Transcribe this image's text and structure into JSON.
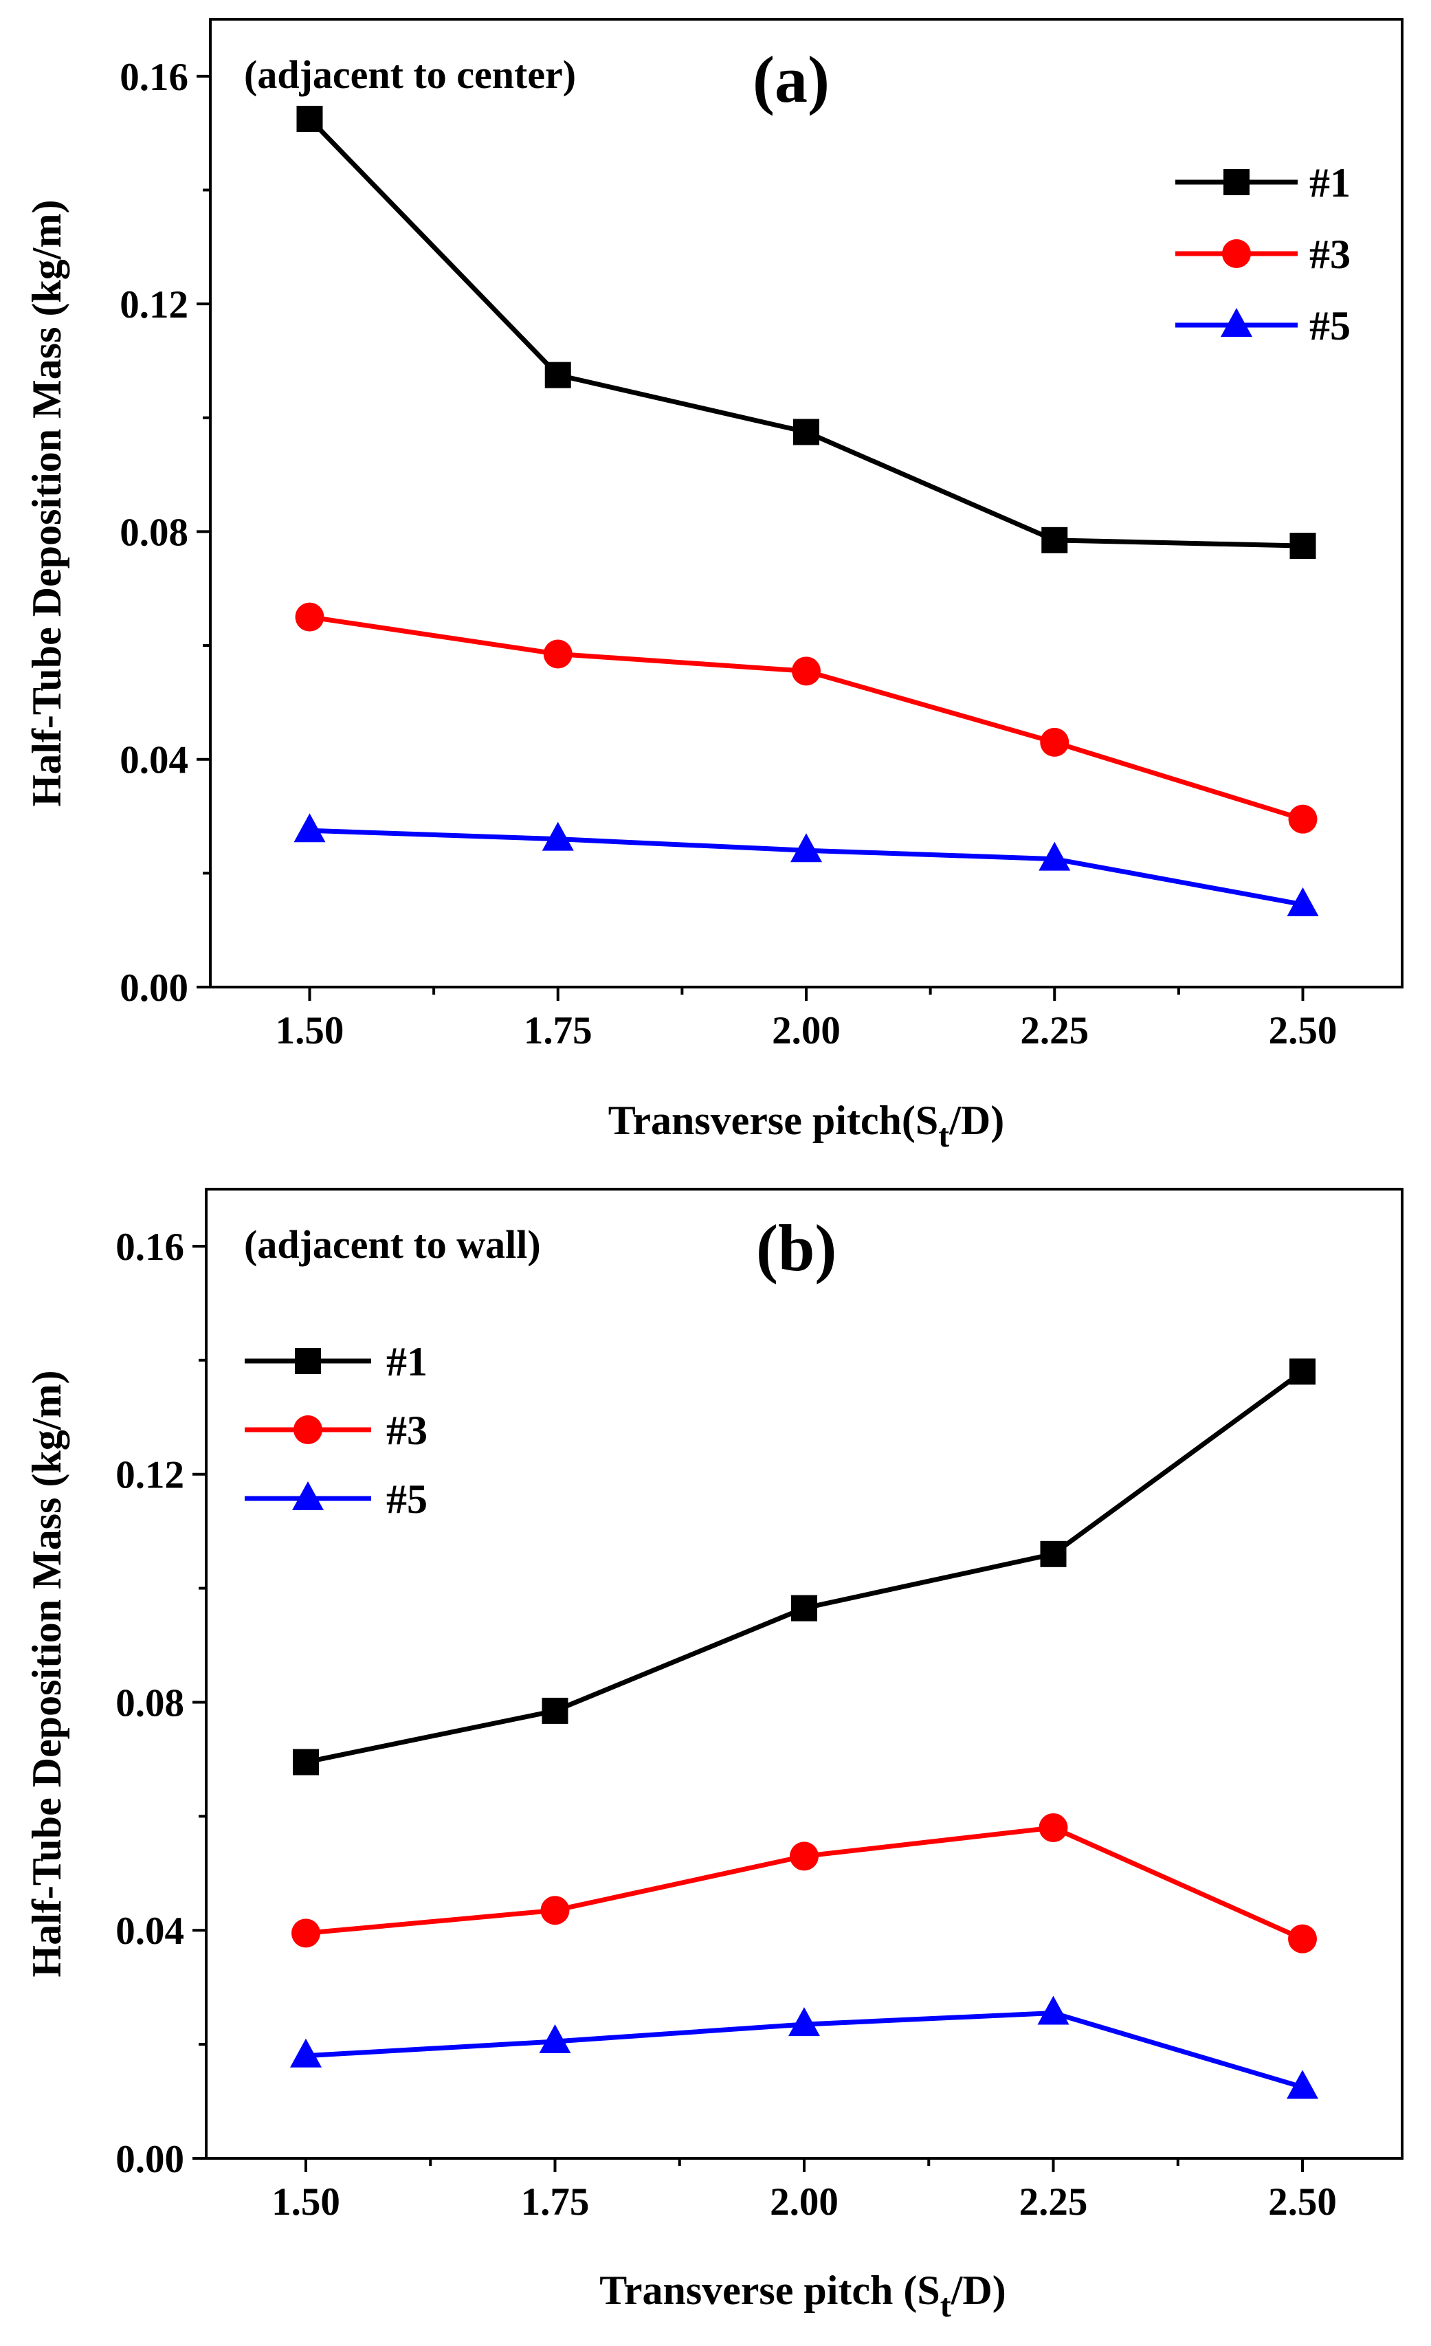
{
  "chart_data": [
    {
      "type": "line",
      "panel_label": "(a)",
      "annotation": "(adjacent to center)",
      "xlabel_main": "Transverse pitch(S",
      "xlabel_sub": "t",
      "xlabel_end": "/D)",
      "ylabel": "Half-Tube Deposition Mass (kg/m)",
      "x": [
        1.5,
        1.75,
        2.0,
        2.25,
        2.5
      ],
      "xtick_labels": [
        "1.50",
        "1.75",
        "2.00",
        "2.25",
        "2.50"
      ],
      "ytick_values": [
        0.0,
        0.04,
        0.08,
        0.12,
        0.16
      ],
      "ytick_labels": [
        "0.00",
        "0.04",
        "0.08",
        "0.12",
        "0.16"
      ],
      "xlim": [
        1.4,
        2.6
      ],
      "ylim": [
        0.0,
        0.17
      ],
      "legend_position": "top-right",
      "series": [
        {
          "name": "#1",
          "color": "#000000",
          "marker": "square",
          "values": [
            0.1525,
            0.1075,
            0.0975,
            0.0785,
            0.0775
          ]
        },
        {
          "name": "#3",
          "color": "#ff0000",
          "marker": "circle",
          "values": [
            0.065,
            0.0585,
            0.0555,
            0.043,
            0.0295
          ]
        },
        {
          "name": "#5",
          "color": "#0000ff",
          "marker": "triangle",
          "values": [
            0.0275,
            0.026,
            0.024,
            0.0225,
            0.0145
          ]
        }
      ]
    },
    {
      "type": "line",
      "panel_label": "(b)",
      "annotation": "(adjacent to wall)",
      "xlabel_main": "Transverse pitch (S",
      "xlabel_sub": "t",
      "xlabel_end": "/D)",
      "ylabel": "Half-Tube Deposition Mass (kg/m)",
      "x": [
        1.5,
        1.75,
        2.0,
        2.25,
        2.5
      ],
      "xtick_labels": [
        "1.50",
        "1.75",
        "2.00",
        "2.25",
        "2.50"
      ],
      "ytick_values": [
        0.0,
        0.04,
        0.08,
        0.12,
        0.16
      ],
      "ytick_labels": [
        "0.00",
        "0.04",
        "0.08",
        "0.12",
        "0.16"
      ],
      "xlim": [
        1.4,
        2.6
      ],
      "ylim": [
        0.0,
        0.17
      ],
      "legend_position": "top-left",
      "series": [
        {
          "name": "#1",
          "color": "#000000",
          "marker": "square",
          "values": [
            0.0695,
            0.0785,
            0.0965,
            0.106,
            0.138
          ]
        },
        {
          "name": "#3",
          "color": "#ff0000",
          "marker": "circle",
          "values": [
            0.0395,
            0.0435,
            0.053,
            0.058,
            0.0385
          ]
        },
        {
          "name": "#5",
          "color": "#0000ff",
          "marker": "triangle",
          "values": [
            0.018,
            0.0205,
            0.0235,
            0.0255,
            0.0125
          ]
        }
      ]
    }
  ]
}
